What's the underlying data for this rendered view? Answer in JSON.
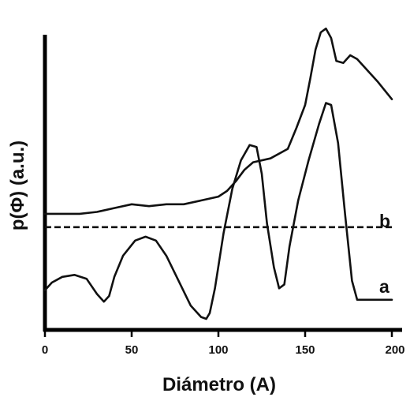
{
  "chart_data": {
    "type": "line",
    "xlabel": "Diámetro (A)",
    "ylabel": "p(Φ) (a.u.)",
    "xlim": [
      0,
      200
    ],
    "xticks": [
      0,
      50,
      100,
      150,
      200
    ],
    "yticks_labeled": false,
    "grid": false,
    "series": [
      {
        "name": "a",
        "x": [
          0,
          4,
          10,
          17,
          24,
          30,
          34,
          37,
          40,
          45,
          52,
          58,
          64,
          70,
          77,
          84,
          90,
          93,
          95,
          98,
          103,
          108,
          113,
          118,
          122,
          125,
          128,
          132,
          135,
          138,
          141,
          146,
          152,
          158,
          162,
          165,
          169,
          173,
          177,
          180,
          190,
          200
        ],
        "y": [
          0.15,
          0.19,
          0.22,
          0.23,
          0.21,
          0.13,
          0.09,
          0.12,
          0.22,
          0.33,
          0.41,
          0.43,
          0.41,
          0.33,
          0.2,
          0.07,
          0.01,
          0.0,
          0.03,
          0.16,
          0.45,
          0.68,
          0.83,
          0.91,
          0.9,
          0.76,
          0.5,
          0.27,
          0.16,
          0.18,
          0.38,
          0.62,
          0.83,
          1.02,
          1.13,
          1.12,
          0.92,
          0.55,
          0.2,
          0.1,
          0.1,
          0.1
        ]
      },
      {
        "name": "b",
        "x": [
          0,
          10,
          20,
          30,
          40,
          50,
          60,
          70,
          80,
          90,
          100,
          105,
          110,
          115,
          120,
          130,
          140,
          145,
          150,
          153,
          156,
          159,
          162,
          165,
          168,
          172,
          176,
          180,
          186,
          192,
          200
        ],
        "y": [
          0.55,
          0.55,
          0.55,
          0.56,
          0.58,
          0.6,
          0.59,
          0.6,
          0.6,
          0.62,
          0.64,
          0.67,
          0.72,
          0.78,
          0.82,
          0.84,
          0.89,
          1.0,
          1.12,
          1.26,
          1.41,
          1.5,
          1.52,
          1.47,
          1.35,
          1.34,
          1.38,
          1.36,
          1.3,
          1.24,
          1.15
        ]
      },
      {
        "name": "baseline",
        "x": [
          0,
          200
        ],
        "y": [
          0.48,
          0.48
        ],
        "style": "dashed"
      }
    ],
    "series_labels": [
      "a",
      "b"
    ]
  }
}
